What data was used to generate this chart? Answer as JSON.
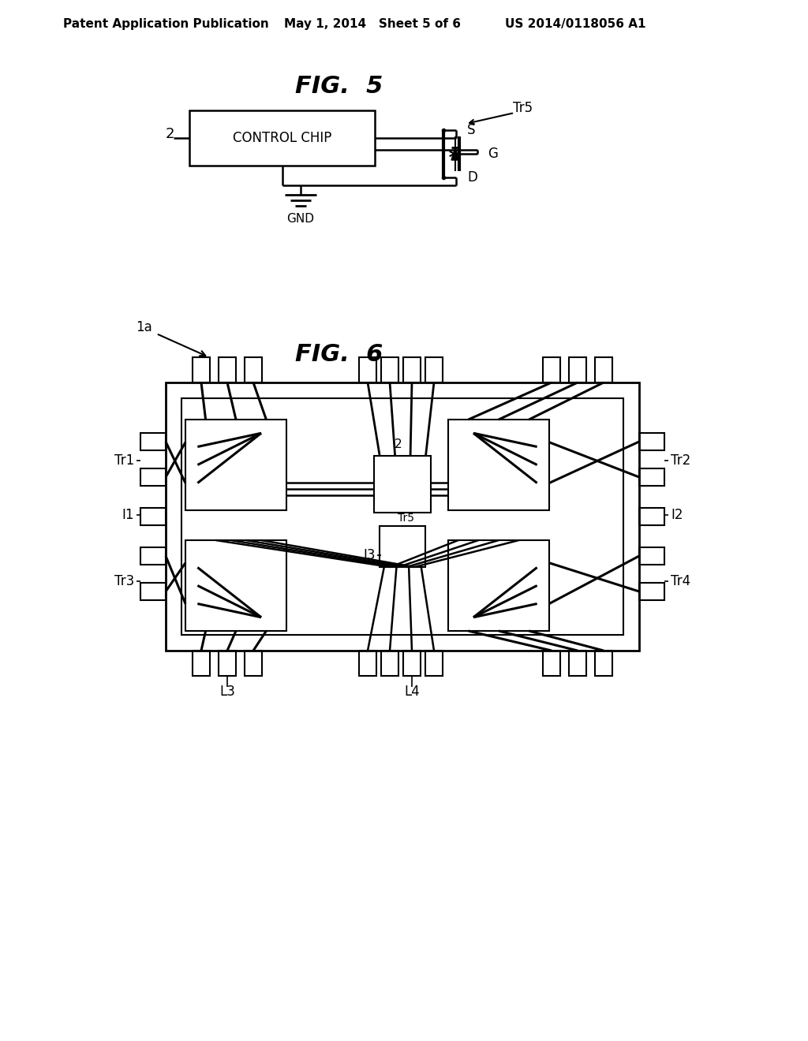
{
  "bg_color": "#ffffff",
  "header_left": "Patent Application Publication",
  "header_mid": "May 1, 2014   Sheet 5 of 6",
  "header_right": "US 2014/0118056 A1",
  "fig5_title": "FIG.  5",
  "fig6_title": "FIG.  6",
  "fig_title_fontsize": 22,
  "header_fontsize": 11,
  "label_fontsize": 12
}
